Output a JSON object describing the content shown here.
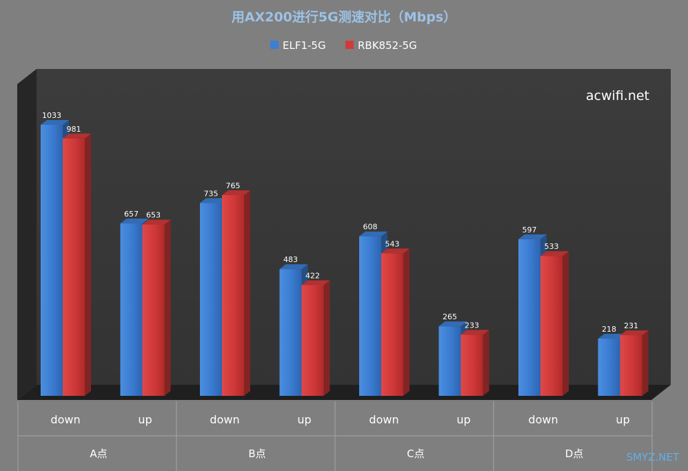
{
  "chart_data": {
    "type": "bar",
    "title": "用AX200进行5G测速对比（Mbps）",
    "watermark": "acwifi.net",
    "corner_mark": "SMYZ.NET",
    "groups": [
      "A点",
      "B点",
      "C点",
      "D点"
    ],
    "sub_categories": [
      "down",
      "up",
      "down",
      "up",
      "down",
      "up",
      "down",
      "up"
    ],
    "series": [
      {
        "name": "ELF1-5G",
        "color": "#3c7fd4",
        "values": [
          1033,
          657,
          735,
          483,
          608,
          265,
          597,
          218
        ]
      },
      {
        "name": "RBK852-5G",
        "color": "#d23a3a",
        "values": [
          981,
          653,
          765,
          422,
          543,
          233,
          533,
          231
        ]
      }
    ],
    "ylim": [
      0,
      1033
    ],
    "grid": false,
    "legend": "top-center",
    "style": "3d-clustered-column"
  }
}
